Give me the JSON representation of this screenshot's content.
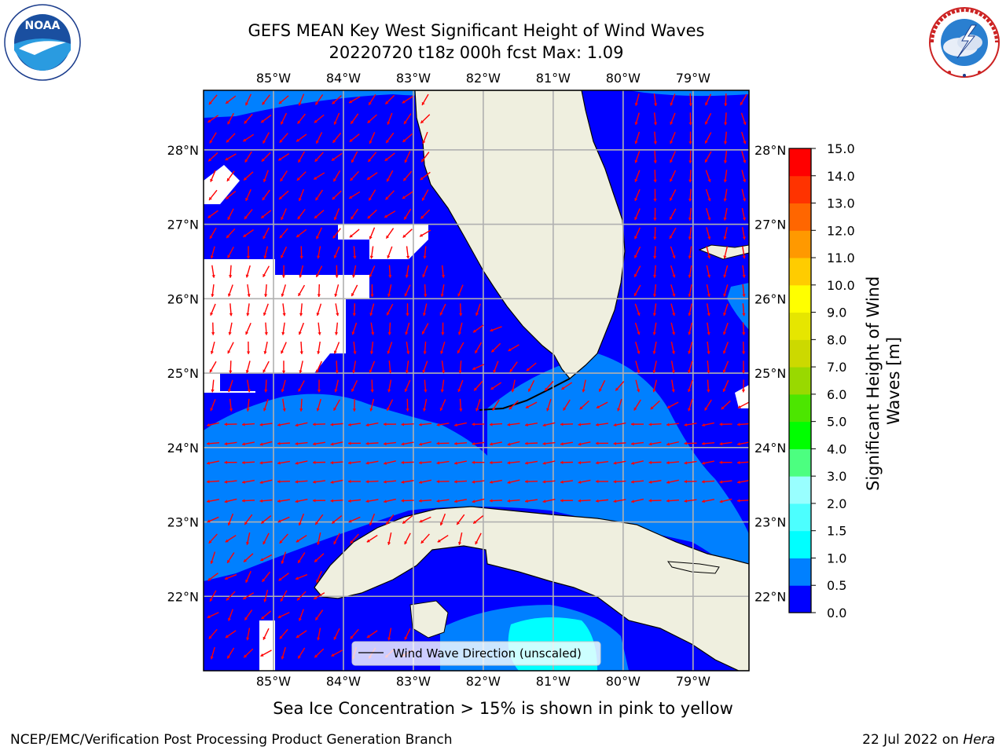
{
  "header": {
    "title_line1": "GEFS MEAN Key West Significant Height of Wind Waves",
    "title_line2": "20220720 t18z 000h fcst   Max: 1.09"
  },
  "logos": {
    "left": "noaa-logo",
    "right": "nws-logo",
    "noaa_text": "NOAA",
    "noaa_ring_text": "NATIONAL OCEANIC AND ATMOSPHERIC ADMINISTRATION · U.S. DEPARTMENT OF COMMERCE",
    "nws_ring_text": "NATIONAL WEATHER SERVICE"
  },
  "map": {
    "lon_labels": [
      "85°W",
      "84°W",
      "83°W",
      "82°W",
      "81°W",
      "80°W",
      "79°W"
    ],
    "lat_labels": [
      "28°N",
      "27°N",
      "26°N",
      "25°N",
      "24°N",
      "23°N",
      "22°N"
    ],
    "lon_range": [
      -86.0,
      -78.2
    ],
    "lat_range": [
      21.0,
      28.8
    ],
    "legend_label": "Wind Wave Direction (unscaled)",
    "ocean_color_low": "#0000ff",
    "ocean_color_mid": "#0080ff",
    "ocean_color_high": "#00ffff",
    "land_color": "#efefdf",
    "arrow_color": "#ff0000"
  },
  "colorbar": {
    "label": "Significant Height of Wind Waves [m]",
    "ticks": [
      "0.0",
      "0.5",
      "1.0",
      "1.5",
      "2.0",
      "3.0",
      "4.0",
      "5.0",
      "6.0",
      "7.0",
      "8.0",
      "9.0",
      "10.0",
      "11.0",
      "12.0",
      "13.0",
      "14.0",
      "15.0"
    ],
    "colors": [
      "#0000ff",
      "#0080ff",
      "#00ffff",
      "#4cffff",
      "#99ffff",
      "#4cff80",
      "#00ff00",
      "#4ce600",
      "#99d900",
      "#ccd900",
      "#e6e600",
      "#ffff00",
      "#ffcc00",
      "#ff9900",
      "#ff6600",
      "#ff3300",
      "#ff0000"
    ]
  },
  "ice_note": "Sea Ice Concentration > 15% is shown in pink to yellow",
  "footer": {
    "credit": "NCEP/EMC/Verification Post Processing Product Generation Branch",
    "date_prefix": "22 Jul 2022 on ",
    "host": "Hera"
  }
}
